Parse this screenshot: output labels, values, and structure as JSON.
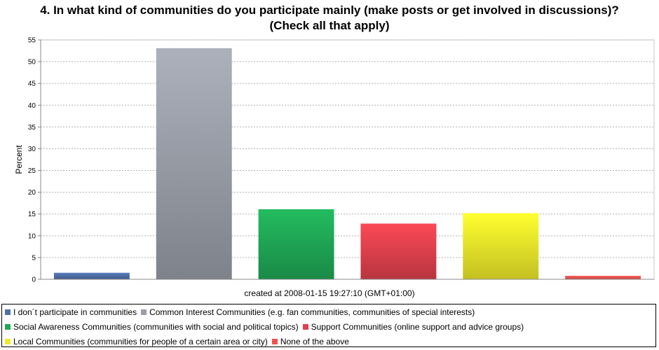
{
  "title_line1": "4. In what kind of communities do you participate mainly (make posts or get involved in discussions)?",
  "title_line2": "(Check all that apply)",
  "created_text": "created at 2008-01-15 19:27:10 (GMT+01:00)",
  "chart_data": {
    "type": "bar",
    "title": "4. In what kind of communities do you participate mainly (make posts or get involved in discussions)? (Check all that apply)",
    "xlabel": "",
    "ylabel": "Percent",
    "ylim": [
      0,
      55
    ],
    "yticks": [
      0,
      5,
      10,
      15,
      20,
      25,
      30,
      35,
      40,
      45,
      50,
      55
    ],
    "grid": true,
    "legend_position": "bottom",
    "categories": [
      "I don´t participate in communities",
      "Common Interest Communities (e.g. fan communities, communities of special interests)",
      "Social Awareness Communities (communities with social and political topics)",
      "Support Communities (online support and advice groups)",
      "Local Communities (communities for people of a certain area or city)",
      "None of the above"
    ],
    "values": [
      1.5,
      53.1,
      16.1,
      12.8,
      15.2,
      0.8
    ],
    "colors": [
      "#4f6fa8",
      "#9a9ea8",
      "#1fa855",
      "#e0414d",
      "#eeea2a",
      "#ef5350"
    ]
  }
}
